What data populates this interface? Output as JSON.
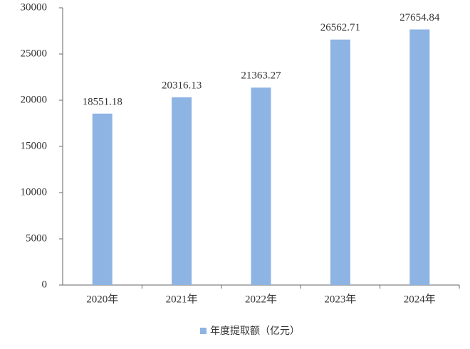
{
  "chart_data": {
    "type": "bar",
    "categories": [
      "2020年",
      "2021年",
      "2022年",
      "2023年",
      "2024年"
    ],
    "series": [
      {
        "name": "年度提取额（亿元）",
        "color": "#8eb4e3",
        "values": [
          18551.18,
          20316.13,
          21363.27,
          26562.71,
          27654.84
        ]
      }
    ],
    "ylim": [
      0,
      30000
    ],
    "yticks": [
      0,
      5000,
      10000,
      15000,
      20000,
      25000,
      30000
    ],
    "grid": false,
    "data_labels": true,
    "legend": "bottom"
  }
}
